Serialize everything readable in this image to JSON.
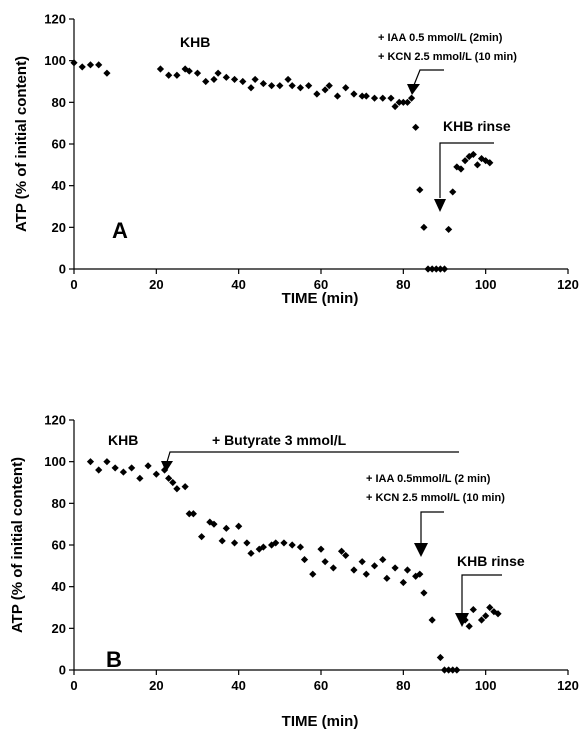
{
  "chart_data": [
    {
      "type": "scatter",
      "panel_label": "A",
      "xlabel": "TIME (min)",
      "ylabel": "ATP (% of initial content)",
      "xlim": [
        0,
        120
      ],
      "ylim": [
        0,
        120
      ],
      "xticks": [
        0,
        20,
        40,
        60,
        80,
        100,
        120
      ],
      "yticks": [
        0,
        20,
        40,
        60,
        80,
        100,
        120
      ],
      "grid": false,
      "marker": "diamond",
      "color": "#000000",
      "x": [
        0,
        2,
        4,
        6,
        8,
        21,
        23,
        25,
        27,
        28,
        30,
        32,
        34,
        35,
        37,
        39,
        41,
        43,
        44,
        46,
        48,
        50,
        52,
        53,
        55,
        57,
        59,
        61,
        62,
        64,
        66,
        68,
        70,
        71,
        73,
        75,
        77,
        78,
        79,
        80,
        81,
        82,
        83,
        84,
        85,
        86,
        87,
        88,
        89,
        90,
        91,
        92,
        93,
        94,
        95,
        96,
        97,
        98,
        99,
        100,
        101
      ],
      "y": [
        99,
        97,
        98,
        98,
        94,
        96,
        93,
        93,
        96,
        95,
        94,
        90,
        91,
        94,
        92,
        91,
        90,
        87,
        91,
        89,
        88,
        88,
        91,
        88,
        87,
        88,
        84,
        86,
        88,
        83,
        87,
        84,
        83,
        83,
        82,
        82,
        82,
        78,
        80,
        80,
        80,
        82,
        68,
        38,
        20,
        0,
        0,
        0,
        0,
        0,
        19,
        37,
        49,
        48,
        52,
        54,
        55,
        50,
        53,
        52,
        51
      ],
      "annotations": [
        {
          "text": "KHB",
          "x": 25,
          "y": 105
        },
        {
          "text": "+ IAA 0.5 mmol/L (2min)",
          "x": 76,
          "y": 111
        },
        {
          "text": "+ KCN 2.5 mmol/L (10 min)",
          "x": 76,
          "y": 103
        },
        {
          "text": "KHB rinse",
          "x": 88,
          "y": 70
        }
      ]
    },
    {
      "type": "scatter",
      "panel_label": "B",
      "xlabel": "TIME (min)",
      "ylabel": "ATP (% of initial content)",
      "xlim": [
        0,
        120
      ],
      "ylim": [
        0,
        120
      ],
      "xticks": [
        0,
        20,
        40,
        60,
        80,
        100,
        120
      ],
      "yticks": [
        0,
        20,
        40,
        60,
        80,
        100,
        120
      ],
      "grid": false,
      "marker": "diamond",
      "color": "#000000",
      "x": [
        4,
        6,
        8,
        10,
        12,
        14,
        16,
        18,
        20,
        22,
        23,
        24,
        25,
        27,
        28,
        29,
        31,
        33,
        34,
        36,
        37,
        39,
        40,
        42,
        43,
        45,
        46,
        48,
        49,
        51,
        53,
        55,
        56,
        58,
        60,
        61,
        63,
        65,
        66,
        68,
        70,
        71,
        73,
        75,
        76,
        78,
        80,
        81,
        83,
        84,
        85,
        87,
        89,
        90,
        91,
        92,
        93,
        95,
        96,
        97,
        99,
        100,
        101,
        102,
        103
      ],
      "y": [
        100,
        96,
        100,
        97,
        95,
        97,
        92,
        98,
        94,
        96,
        92,
        90,
        87,
        88,
        75,
        75,
        64,
        71,
        70,
        62,
        68,
        61,
        69,
        61,
        56,
        58,
        59,
        60,
        61,
        61,
        60,
        59,
        53,
        46,
        58,
        52,
        49,
        57,
        55,
        48,
        52,
        46,
        50,
        53,
        44,
        49,
        42,
        48,
        45,
        46,
        37,
        24,
        6,
        0,
        0,
        0,
        0,
        24,
        21,
        29,
        24,
        26,
        30,
        28,
        27
      ],
      "annotations": [
        {
          "text": "KHB",
          "x": 9,
          "y": 106
        },
        {
          "text": "+ Butyrate 3 mmol/L",
          "x": 33,
          "y": 104
        },
        {
          "text": "+ IAA 0.5mmol/L (2 min)",
          "x": 71,
          "y": 85
        },
        {
          "text": "+ KCN 2.5 mmol/L (10 min)",
          "x": 71,
          "y": 76
        },
        {
          "text": "KHB rinse",
          "x": 93,
          "y": 44
        }
      ]
    }
  ]
}
